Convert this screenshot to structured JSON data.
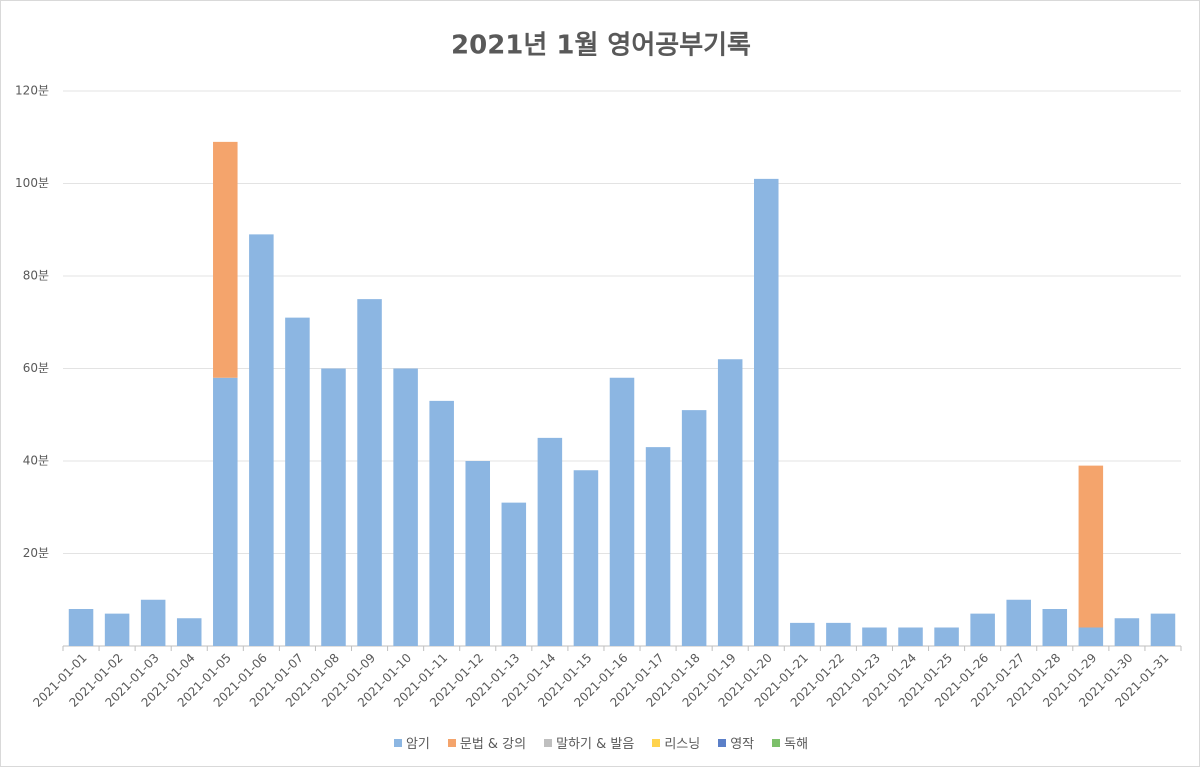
{
  "chart_data": {
    "type": "stacked_bar",
    "title": "2021년 1월 영어공부기록",
    "categories": [
      "2021-01-01",
      "2021-01-02",
      "2021-01-03",
      "2021-01-04",
      "2021-01-05",
      "2021-01-06",
      "2021-01-07",
      "2021-01-08",
      "2021-01-09",
      "2021-01-10",
      "2021-01-11",
      "2021-01-12",
      "2021-01-13",
      "2021-01-14",
      "2021-01-15",
      "2021-01-16",
      "2021-01-17",
      "2021-01-18",
      "2021-01-19",
      "2021-01-20",
      "2021-01-21",
      "2021-01-22",
      "2021-01-23",
      "2021-01-24",
      "2021-01-25",
      "2021-01-26",
      "2021-01-27",
      "2021-01-28",
      "2021-01-29",
      "2021-01-30",
      "2021-01-31"
    ],
    "series": [
      {
        "name": "암기",
        "color": "#8cb6e2",
        "values": [
          8,
          7,
          10,
          6,
          58,
          89,
          71,
          60,
          75,
          60,
          53,
          40,
          31,
          45,
          38,
          58,
          43,
          51,
          62,
          101,
          5,
          5,
          4,
          4,
          4,
          7,
          10,
          8,
          4,
          6,
          7
        ]
      },
      {
        "name": "문법 & 강의",
        "color": "#f4a46c",
        "values": [
          0,
          0,
          0,
          0,
          51,
          0,
          0,
          0,
          0,
          0,
          0,
          0,
          0,
          0,
          0,
          0,
          0,
          0,
          0,
          0,
          0,
          0,
          0,
          0,
          0,
          0,
          0,
          0,
          35,
          0,
          0
        ]
      },
      {
        "name": "말하기 & 발음",
        "color": "#bfbfbf",
        "values": [
          0,
          0,
          0,
          0,
          0,
          0,
          0,
          0,
          0,
          0,
          0,
          0,
          0,
          0,
          0,
          0,
          0,
          0,
          0,
          0,
          0,
          0,
          0,
          0,
          0,
          0,
          0,
          0,
          0,
          0,
          0
        ]
      },
      {
        "name": "리스닝",
        "color": "#ffd34d",
        "values": [
          0,
          0,
          0,
          0,
          0,
          0,
          0,
          0,
          0,
          0,
          0,
          0,
          0,
          0,
          0,
          0,
          0,
          0,
          0,
          0,
          0,
          0,
          0,
          0,
          0,
          0,
          0,
          0,
          0,
          0,
          0
        ]
      },
      {
        "name": "영작",
        "color": "#5b7fc8",
        "values": [
          0,
          0,
          0,
          0,
          0,
          0,
          0,
          0,
          0,
          0,
          0,
          0,
          0,
          0,
          0,
          0,
          0,
          0,
          0,
          0,
          0,
          0,
          0,
          0,
          0,
          0,
          0,
          0,
          0,
          0,
          0
        ]
      },
      {
        "name": "독해",
        "color": "#7cc06a",
        "values": [
          0,
          0,
          0,
          0,
          0,
          0,
          0,
          0,
          0,
          0,
          0,
          0,
          0,
          0,
          0,
          0,
          0,
          0,
          0,
          0,
          0,
          0,
          0,
          0,
          0,
          0,
          0,
          0,
          0,
          0,
          0
        ]
      }
    ],
    "ylim": [
      0,
      120
    ],
    "yticks": [
      {
        "value": 20,
        "label": "20분"
      },
      {
        "value": 40,
        "label": "40분"
      },
      {
        "value": 60,
        "label": "60분"
      },
      {
        "value": 80,
        "label": "80분"
      },
      {
        "value": 100,
        "label": "100분"
      },
      {
        "value": 120,
        "label": "120분"
      }
    ],
    "grid": true,
    "legend": "bottom"
  }
}
